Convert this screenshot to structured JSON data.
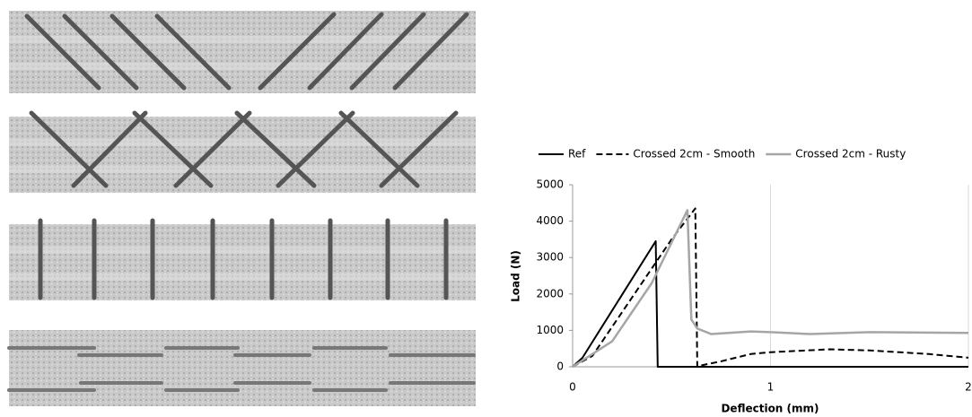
{
  "chart_data": {
    "type": "line",
    "xlabel": "Deflection (mm)",
    "ylabel": "Load (N)",
    "xlim": [
      0,
      2
    ],
    "xticks": [
      0,
      1,
      2
    ],
    "ylim": [
      0,
      5000
    ],
    "yticks": [
      0,
      1000,
      2000,
      3000,
      4000,
      5000
    ],
    "grid": "x",
    "legend": "top",
    "series": [
      {
        "name": "Ref",
        "color": "#000000",
        "line_style": "solid",
        "x": [
          0,
          0.05,
          0.42,
          0.43,
          2
        ],
        "values": [
          0,
          250,
          3450,
          0,
          0
        ]
      },
      {
        "name": "Crossed 2cm - Smooth",
        "color": "#000000",
        "line_style": "dashed",
        "x": [
          0,
          0.1,
          0.3,
          0.5,
          0.62,
          0.63,
          0.66,
          0.75,
          0.9,
          1.0,
          1.3,
          1.5,
          1.8,
          2.0
        ],
        "values": [
          0,
          300,
          1900,
          3500,
          4350,
          0,
          50,
          150,
          350,
          400,
          480,
          450,
          350,
          250
        ]
      },
      {
        "name": "Crossed 2cm - Rusty",
        "color": "#a6a6a6",
        "line_style": "solid",
        "x": [
          0,
          0.2,
          0.4,
          0.58,
          0.6,
          0.63,
          0.7,
          0.9,
          1.0,
          1.2,
          1.5,
          2.0
        ],
        "values": [
          0,
          700,
          2300,
          4300,
          1300,
          1050,
          900,
          970,
          950,
          900,
          950,
          930
        ]
      }
    ]
  }
}
